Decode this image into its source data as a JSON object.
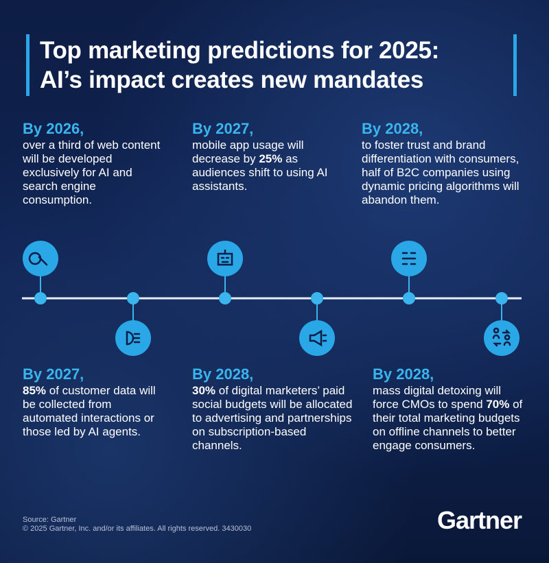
{
  "header": {
    "title_lines": [
      "Top marketing predictions for 2025:",
      "AI’s impact creates new mandates"
    ]
  },
  "predictions": [
    {
      "heading": "By 2026,",
      "text": [
        {
          "text": "over a third of web content will be developed exclusively for AI and search engine consumption."
        }
      ]
    },
    {
      "heading": "By 2027,",
      "text": [
        {
          "text": "mobile app usage will decrease by "
        },
        {
          "text": "25%",
          "bold": true
        },
        {
          "text": " as audiences shift to using AI assistants."
        }
      ]
    },
    {
      "heading": "By 2028,",
      "text": [
        {
          "text": "to foster trust and brand differentiation with consumers, half of B2C companies using dynamic pricing algorithms will abandon them."
        }
      ]
    },
    {
      "heading": "By 2027,",
      "text": [
        {
          "text": "85%",
          "bold": true
        },
        {
          "text": " of customer data will be collected from automated interactions or those led by AI agents."
        }
      ]
    },
    {
      "heading": "By 2028,",
      "text": [
        {
          "text": "30%",
          "bold": true
        },
        {
          "text": " of digital marketers’ paid social budgets will be allocated to advertising and partnerships on subscription-based channels."
        }
      ]
    },
    {
      "heading": "By 2028,",
      "text": [
        {
          "text": "mass digital detoxing will force CMOs to spend "
        },
        {
          "text": "70%",
          "bold": true
        },
        {
          "text": " of their total marketing budgets on offline channels to better engage consumers."
        }
      ]
    }
  ],
  "footer": {
    "source": "Source: Gartner",
    "copyright": "© 2025 Gartner, Inc. and/or its affiliates. All rights reserved. 3430030",
    "logo": "Gartner"
  }
}
